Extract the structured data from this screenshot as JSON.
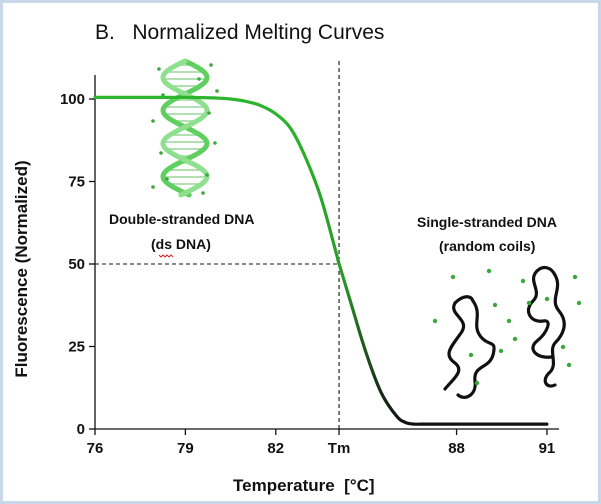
{
  "chart_data": {
    "type": "line",
    "title": "B.   Normalized Melting Curves",
    "xlabel": "Temperature  [°C]",
    "ylabel": "Fluorescence (Normalized)",
    "xlim": [
      76,
      91.4
    ],
    "ylim": [
      0,
      100
    ],
    "x_ticks": [
      {
        "value": 76,
        "label": "76"
      },
      {
        "value": 79,
        "label": "79"
      },
      {
        "value": 82,
        "label": "82"
      },
      {
        "value": 84.1,
        "label": "Tm"
      },
      {
        "value": 88,
        "label": "88"
      },
      {
        "value": 91,
        "label": "91"
      }
    ],
    "y_ticks": [
      {
        "value": 0,
        "label": "0"
      },
      {
        "value": 25,
        "label": "25"
      },
      {
        "value": 50,
        "label": "50"
      },
      {
        "value": 75,
        "label": "75"
      },
      {
        "value": 100,
        "label": "100"
      }
    ],
    "tm": 84.1,
    "tm_value": 50,
    "series": [
      {
        "color": "#2db52d",
        "x": [
          76,
          77,
          78,
          79,
          80,
          80.5,
          81,
          81.5,
          82,
          82.5,
          83,
          83.5,
          84,
          84.1,
          84.5,
          85,
          85.5,
          86,
          86.3,
          86.6,
          87,
          88,
          89,
          90,
          91
        ],
        "y": [
          100.5,
          100.5,
          100.5,
          100.5,
          100.3,
          100,
          99.3,
          98,
          95.5,
          91,
          82,
          70,
          53.5,
          50,
          38,
          23,
          11,
          4,
          2,
          1.5,
          1.5,
          1.5,
          1.5,
          1.5,
          1.5
        ]
      }
    ],
    "annotations": [
      {
        "id": "ds",
        "lines": [
          "Double-stranded DNA",
          "(ds DNA)"
        ]
      },
      {
        "id": "ss",
        "lines": [
          "Single-stranded DNA",
          "(random coils)"
        ]
      }
    ],
    "grid": false,
    "legend": "none"
  }
}
